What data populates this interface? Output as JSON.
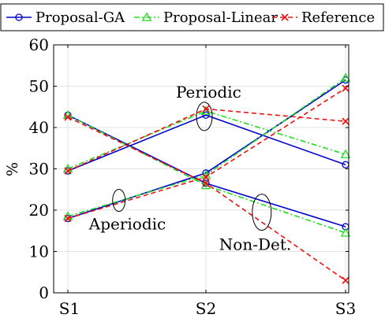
{
  "chart_data": {
    "type": "line",
    "categories": [
      "S1",
      "S2",
      "S3"
    ],
    "ylabel": "%",
    "xlabel": "",
    "ylim": [
      0,
      60
    ],
    "yticks": [
      0,
      10,
      20,
      30,
      40,
      50,
      60
    ],
    "grid": true,
    "legend_position": "top",
    "legend": [
      {
        "name": "Proposal-GA",
        "color": "#0000cc",
        "dash": "solid",
        "marker": "circle"
      },
      {
        "name": "Proposal-Linear",
        "color": "#22dd22",
        "dash": "dashdot",
        "marker": "triangle"
      },
      {
        "name": "Reference",
        "color": "#ee1111",
        "dash": "dashed",
        "marker": "x"
      }
    ],
    "groups": [
      {
        "label": "Periodic",
        "series": {
          "Proposal-GA": [
            29.5,
            43,
            31
          ],
          "Proposal-Linear": [
            30,
            44,
            33.5
          ],
          "Reference": [
            29.5,
            44.5,
            41.5
          ]
        }
      },
      {
        "label": "Aperiodic",
        "series": {
          "Proposal-GA": [
            18,
            29,
            51.5
          ],
          "Proposal-Linear": [
            18.5,
            28.5,
            52
          ],
          "Reference": [
            18,
            28,
            49.5
          ]
        }
      },
      {
        "label": "Non-Det.",
        "series": {
          "Proposal-GA": [
            43,
            26.5,
            16
          ],
          "Proposal-Linear": [
            43,
            26,
            14.5
          ],
          "Reference": [
            42.5,
            26.5,
            3
          ]
        }
      }
    ],
    "annotations": [
      {
        "text": "Periodic",
        "group": "Periodic"
      },
      {
        "text": "Aperiodic",
        "group": "Aperiodic"
      },
      {
        "text": "Non-Det.",
        "group": "Non-Det."
      }
    ]
  }
}
